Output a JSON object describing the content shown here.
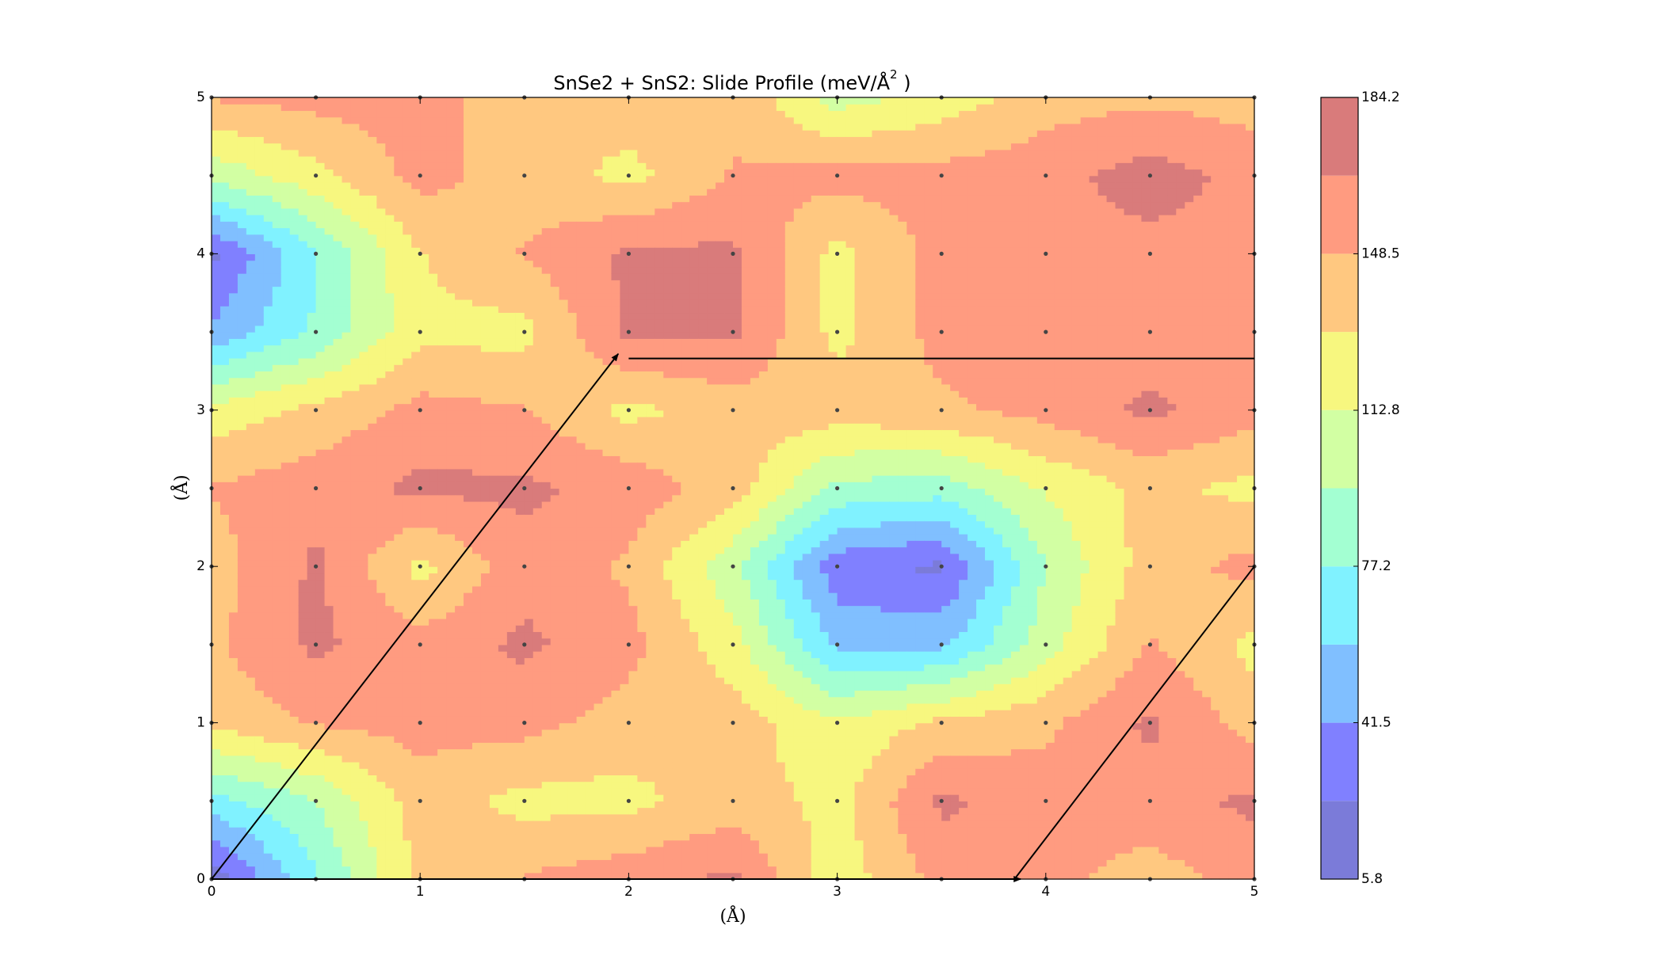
{
  "chart_data": {
    "type": "contourf",
    "title": "SnSe2 + SnS2: Slide Profile (meV/Å",
    "title_sup": "2",
    "title_end": " )",
    "xlabel": "(Å)",
    "ylabel": "(Å)",
    "x": [
      0,
      0.5,
      1,
      1.5,
      2,
      2.5,
      3,
      3.5,
      4,
      4.5,
      5
    ],
    "y": [
      0,
      0.5,
      1,
      1.5,
      2,
      2.5,
      3,
      3.5,
      4,
      4.5,
      5
    ],
    "z": [
      [
        10,
        75,
        135,
        150,
        160,
        170,
        120,
        155,
        155,
        140,
        155
      ],
      [
        70,
        95,
        140,
        125,
        125,
        140,
        125,
        170,
        155,
        160,
        170
      ],
      [
        135,
        150,
        155,
        155,
        140,
        140,
        115,
        135,
        145,
        170,
        140
      ],
      [
        145,
        170,
        155,
        170,
        155,
        120,
        55,
        55,
        105,
        150,
        125
      ],
      [
        140,
        170,
        125,
        160,
        145,
        100,
        30,
        20,
        95,
        140,
        155
      ],
      [
        150,
        160,
        170,
        170,
        160,
        140,
        90,
        85,
        115,
        135,
        125
      ],
      [
        120,
        135,
        155,
        150,
        125,
        140,
        140,
        145,
        155,
        170,
        155
      ],
      [
        45,
        80,
        125,
        125,
        170,
        170,
        125,
        155,
        155,
        155,
        155
      ],
      [
        20,
        75,
        130,
        150,
        170,
        170,
        125,
        155,
        160,
        160,
        160
      ],
      [
        100,
        125,
        155,
        140,
        125,
        150,
        155,
        155,
        160,
        175,
        160
      ],
      [
        150,
        155,
        155,
        140,
        140,
        145,
        105,
        120,
        140,
        145,
        140
      ]
    ],
    "levels": [
      5.8,
      23.64,
      41.48,
      59.32,
      77.16,
      95.0,
      112.84,
      130.68,
      148.52,
      166.36,
      184.2
    ],
    "colors": [
      "#7b7bd9",
      "#8080ff",
      "#80bfff",
      "#80f2ff",
      "#a3ffd2",
      "#d2ffa3",
      "#f7f77f",
      "#ffc880",
      "#ff9b80",
      "#d97b7b"
    ],
    "colorbar_ticks": [
      5.8,
      41.5,
      77.2,
      112.8,
      148.5,
      184.2
    ],
    "xlim": [
      0,
      5
    ],
    "ylim": [
      0,
      5
    ],
    "xticks": [
      0,
      1,
      2,
      3,
      4,
      5
    ],
    "yticks": [
      0,
      1,
      2,
      3,
      4,
      5
    ],
    "arrows": [
      {
        "x0": 0,
        "y0": 0,
        "x1": 1.95,
        "y1": 3.36,
        "head": true
      },
      {
        "x0": 2,
        "y0": 3.33,
        "x1": 5,
        "y1": 3.33,
        "head": false
      },
      {
        "x0": 0,
        "y0": 0,
        "x1": 3.88,
        "y1": 0,
        "head": true
      },
      {
        "x0": 3.85,
        "y0": 0,
        "x1": 5,
        "y1": 2,
        "head": false
      }
    ]
  }
}
